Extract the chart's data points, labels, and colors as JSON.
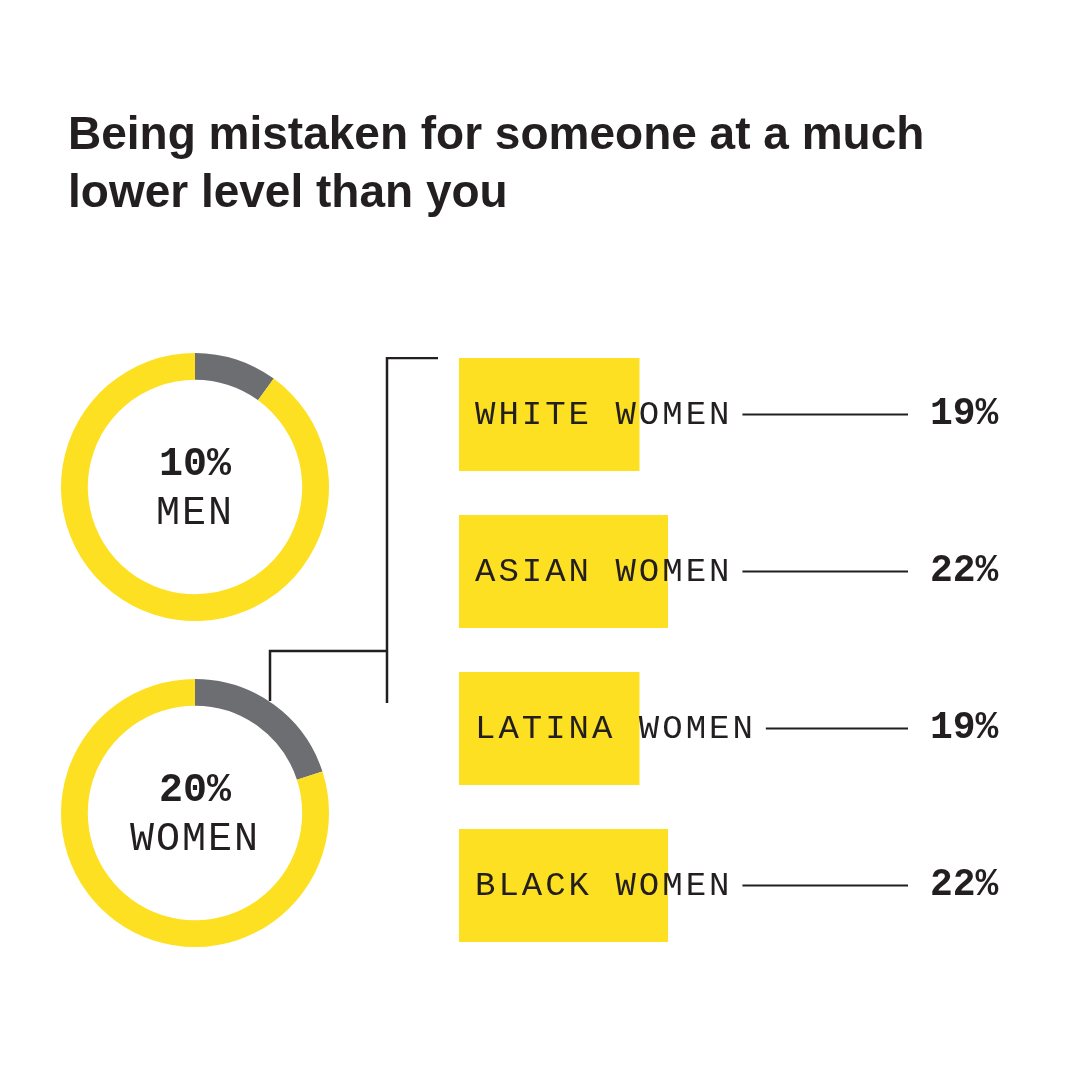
{
  "chart_data": [
    {
      "type": "donut",
      "title": "Being mistaken for someone at a much lower level than you",
      "categories": [
        "MEN",
        null
      ],
      "values": [
        10,
        90
      ],
      "colors": [
        "#6d6e71",
        "#fde021"
      ],
      "value_labels": [
        "10%",
        null
      ]
    },
    {
      "type": "donut",
      "categories": [
        "WOMEN",
        null
      ],
      "values": [
        20,
        80
      ],
      "colors": [
        "#6d6e71",
        "#fde021"
      ],
      "value_labels": [
        "20%",
        null
      ]
    },
    {
      "type": "bar",
      "orientation": "horizontal",
      "categories": [
        "WHITE WOMEN",
        "ASIAN WOMEN",
        "LATINA WOMEN",
        "BLACK WOMEN"
      ],
      "values": [
        19,
        22,
        19,
        22
      ],
      "color": "#fde021",
      "value_labels": [
        "19%",
        "22%",
        "19%",
        "22%"
      ]
    }
  ]
}
